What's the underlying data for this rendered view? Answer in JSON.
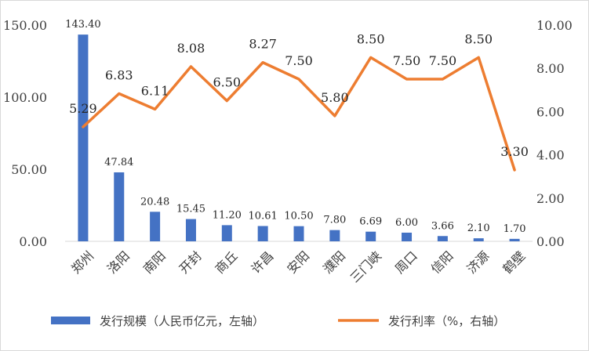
{
  "chart_data": {
    "type": "bar",
    "categories": [
      "郑州",
      "洛阳",
      "南阳",
      "开封",
      "商丘",
      "许昌",
      "安阳",
      "濮阳",
      "三门峡",
      "周口",
      "信阳",
      "济源",
      "鹤壁"
    ],
    "series": [
      {
        "name": "发行规模（人民币亿元，左轴）",
        "type": "bar",
        "axis": "left",
        "color": "#4472C4",
        "values": [
          143.4,
          47.84,
          20.48,
          15.45,
          11.2,
          10.61,
          10.5,
          7.8,
          6.69,
          6.0,
          3.66,
          2.1,
          1.7
        ],
        "labels": [
          "143.40",
          "47.84",
          "20.48",
          "15.45",
          "11.20",
          "10.61",
          "10.50",
          "7.80",
          "6.69",
          "6.00",
          "3.66",
          "2.10",
          "1.70"
        ]
      },
      {
        "name": "发行利率（%，右轴）",
        "type": "line",
        "axis": "right",
        "color": "#ED7D31",
        "values": [
          5.29,
          6.83,
          6.11,
          8.08,
          6.5,
          8.27,
          7.5,
          5.8,
          8.5,
          7.5,
          7.5,
          8.5,
          3.3
        ],
        "labels": [
          "5.29",
          "6.83",
          "6.11",
          "8.08",
          "6.50",
          "8.27",
          "7.50",
          "5.80",
          "8.50",
          "7.50",
          "7.50",
          "8.50",
          "3.30"
        ]
      }
    ],
    "y_left": {
      "min": 0,
      "max": 150,
      "ticks": [
        "0.00",
        "50.00",
        "100.00",
        "150.00"
      ]
    },
    "y_right": {
      "min": 0,
      "max": 10,
      "ticks": [
        "0.00",
        "2.00",
        "4.00",
        "6.00",
        "8.00",
        "10.00"
      ]
    },
    "title": "",
    "xlabel": "",
    "grid": false,
    "legend_position": "bottom"
  }
}
